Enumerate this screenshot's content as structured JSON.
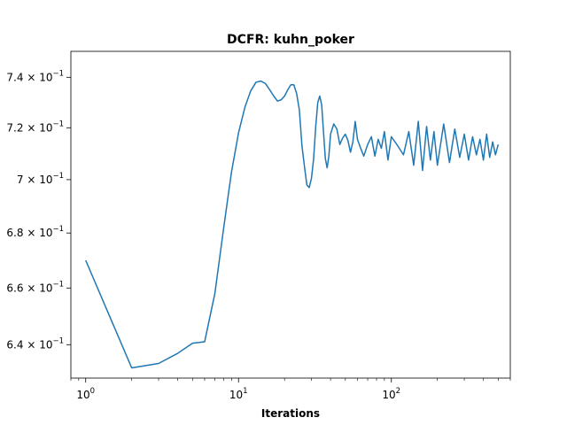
{
  "chart_data": {
    "type": "line",
    "title": "DCFR: kuhn_poker",
    "xlabel": "Iterations",
    "ylabel": "",
    "xscale": "log",
    "yscale": "log",
    "xlim": [
      0.8,
      600
    ],
    "ylim": [
      0.6285,
      0.7505
    ],
    "grid": false,
    "x_ticks": [
      {
        "value": 1,
        "base": "10",
        "exp": "0"
      },
      {
        "value": 10,
        "base": "10",
        "exp": "1"
      },
      {
        "value": 100,
        "base": "10",
        "exp": "2"
      }
    ],
    "y_ticks": [
      {
        "value": 0.64,
        "mant": "6.4",
        "exp": "−1"
      },
      {
        "value": 0.66,
        "mant": "6.6",
        "exp": "−1"
      },
      {
        "value": 0.68,
        "mant": "6.8",
        "exp": "−1"
      },
      {
        "value": 0.7,
        "mant": "7",
        "exp": "−1"
      },
      {
        "value": 0.72,
        "mant": "7.2",
        "exp": "−1"
      },
      {
        "value": 0.74,
        "mant": "7.4",
        "exp": "−1"
      }
    ],
    "series": [
      {
        "color": "#1f77b4",
        "x": [
          1,
          2,
          3,
          4,
          5,
          6,
          7,
          8,
          9,
          10,
          11,
          12,
          13,
          14,
          15,
          16,
          17,
          18,
          19,
          20,
          21,
          22,
          23,
          24,
          25,
          26,
          27,
          28,
          29,
          30,
          31,
          32,
          33,
          34,
          35,
          36,
          37,
          38,
          39,
          40,
          42,
          44,
          46,
          48,
          50,
          52,
          54,
          56,
          58,
          60,
          63,
          66,
          70,
          74,
          78,
          82,
          86,
          90,
          95,
          100,
          110,
          120,
          130,
          140,
          150,
          160,
          170,
          180,
          190,
          200,
          220,
          240,
          260,
          280,
          300,
          320,
          340,
          360,
          380,
          400,
          420,
          440,
          460,
          480,
          500
        ],
        "y": [
          0.67,
          0.632,
          0.6335,
          0.637,
          0.6405,
          0.641,
          0.658,
          0.682,
          0.703,
          0.718,
          0.728,
          0.7345,
          0.738,
          0.7385,
          0.7375,
          0.735,
          0.7325,
          0.7305,
          0.731,
          0.7325,
          0.735,
          0.737,
          0.737,
          0.7335,
          0.727,
          0.713,
          0.705,
          0.698,
          0.697,
          0.7005,
          0.708,
          0.7205,
          0.73,
          0.7325,
          0.729,
          0.718,
          0.708,
          0.7045,
          0.709,
          0.7175,
          0.7215,
          0.7195,
          0.7135,
          0.716,
          0.7175,
          0.715,
          0.7105,
          0.7145,
          0.7225,
          0.7155,
          0.712,
          0.709,
          0.7135,
          0.7165,
          0.709,
          0.7155,
          0.712,
          0.7185,
          0.7075,
          0.7165,
          0.713,
          0.7095,
          0.7185,
          0.7055,
          0.7225,
          0.7035,
          0.7205,
          0.7075,
          0.7185,
          0.7055,
          0.7215,
          0.7065,
          0.7195,
          0.7085,
          0.7175,
          0.7075,
          0.7165,
          0.7095,
          0.7155,
          0.7075,
          0.7175,
          0.7085,
          0.7145,
          0.7095,
          0.7135
        ]
      }
    ]
  }
}
